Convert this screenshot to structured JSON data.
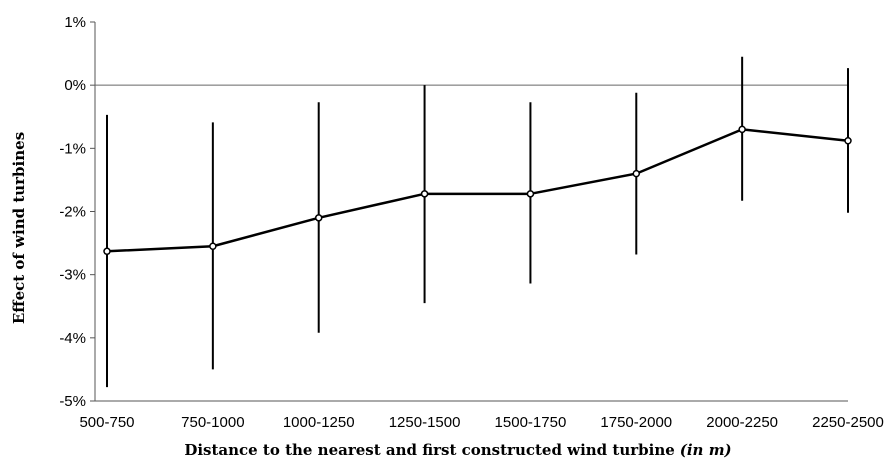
{
  "chart_data": {
    "type": "line",
    "categories": [
      "500-750",
      "750-1000",
      "1000-1250",
      "1250-1500",
      "1500-1750",
      "1750-2000",
      "2000-2250",
      "2250-2500"
    ],
    "series": [
      {
        "values": [
          -2.63,
          -2.55,
          -2.1,
          -1.72,
          -1.72,
          -1.4,
          -0.7,
          -0.88
        ],
        "error_low": [
          -4.78,
          -4.5,
          -3.92,
          -3.45,
          -3.14,
          -2.68,
          -1.83,
          -2.02
        ],
        "error_high": [
          -0.47,
          -0.59,
          -0.27,
          0.0,
          -0.27,
          -0.12,
          0.45,
          0.27
        ]
      }
    ],
    "yticks": [
      "-5%",
      "-4%",
      "-3%",
      "-2%",
      "-1%",
      "0%",
      "1%"
    ],
    "ylim": [
      -5,
      1
    ],
    "ylabel": "Effect of wind turbines",
    "xlabel": "Distance to the nearest and first constructed wind turbine",
    "xlabel_suffix": "(in m)",
    "grid": false,
    "zero_line": true,
    "line_color": "#000000",
    "marker": "open-circle"
  }
}
